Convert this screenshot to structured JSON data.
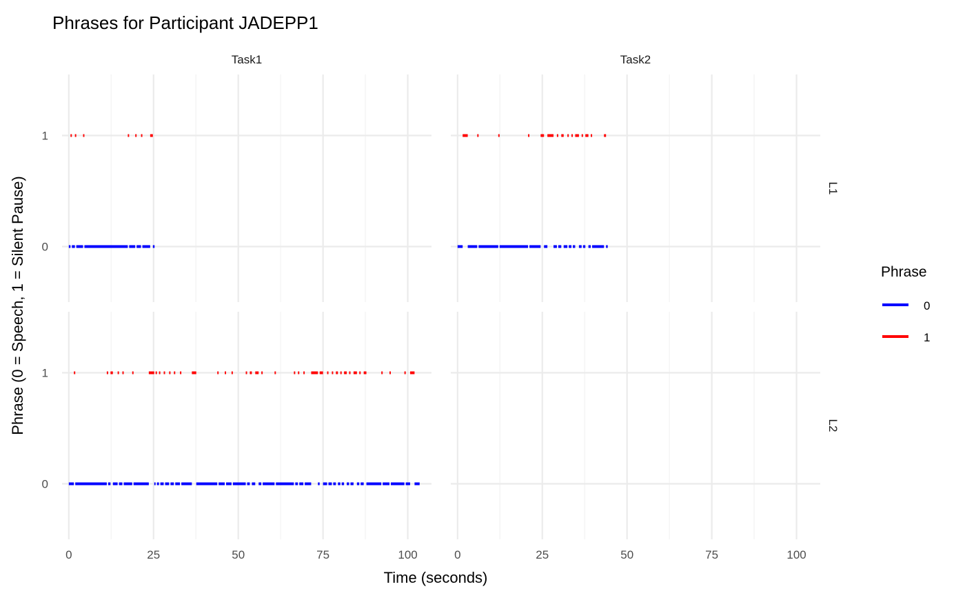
{
  "chart_data": {
    "type": "line",
    "title": "Phrases for Participant JADEPP1",
    "xlabel": "Time (seconds)",
    "ylabel": "Phrase (0 = Speech, 1 = Silent Pause)",
    "xlim": [
      -2,
      107
    ],
    "ylim": [
      -0.5,
      1.55
    ],
    "x_ticks": [
      0,
      25,
      50,
      75,
      100
    ],
    "x_tick_labels": [
      "0",
      "25",
      "50",
      "75",
      "100"
    ],
    "y_ticks": [
      0,
      1
    ],
    "y_tick_labels": [
      "0",
      "1"
    ],
    "x_minor_ticks": [
      12.5,
      37.5,
      62.5,
      87.5
    ],
    "grid": true,
    "facet_cols": [
      "Task1",
      "Task2"
    ],
    "facet_rows": [
      "L1",
      "L2"
    ],
    "legend": {
      "title": "Phrase",
      "position": "right",
      "entries": [
        {
          "label": "0",
          "color": "#0000FF"
        },
        {
          "label": "1",
          "color": "#FF0000"
        }
      ]
    },
    "colors": {
      "0": "#0000FF",
      "1": "#FF0000"
    },
    "panels": [
      {
        "col": "Task1",
        "row": "L1",
        "segments": [
          [
            0.0,
            0.5,
            0
          ],
          [
            0.5,
            0.9,
            1
          ],
          [
            0.9,
            1.8,
            0
          ],
          [
            1.8,
            2.2,
            1
          ],
          [
            2.2,
            4.2,
            0
          ],
          [
            4.2,
            4.6,
            1
          ],
          [
            4.6,
            17.4,
            0
          ],
          [
            17.4,
            17.8,
            1
          ],
          [
            17.8,
            19.6,
            0
          ],
          [
            19.6,
            20.0,
            1
          ],
          [
            20.0,
            21.3,
            0
          ],
          [
            21.3,
            21.7,
            1
          ],
          [
            21.7,
            24.0,
            0
          ],
          [
            24.0,
            24.8,
            1
          ],
          [
            24.8,
            25.3,
            0
          ]
        ]
      },
      {
        "col": "Task2",
        "row": "L1",
        "segments": [
          [
            0.0,
            1.5,
            0
          ],
          [
            1.5,
            3.0,
            1
          ],
          [
            3.0,
            5.8,
            0
          ],
          [
            5.8,
            6.2,
            1
          ],
          [
            6.2,
            12.0,
            0
          ],
          [
            12.0,
            12.4,
            1
          ],
          [
            12.4,
            20.8,
            0
          ],
          [
            20.8,
            21.2,
            1
          ],
          [
            21.2,
            24.5,
            0
          ],
          [
            24.5,
            25.5,
            1
          ],
          [
            25.5,
            26.5,
            0
          ],
          [
            26.5,
            28.3,
            1
          ],
          [
            28.3,
            29.3,
            0
          ],
          [
            29.3,
            29.7,
            1
          ],
          [
            29.7,
            30.6,
            0
          ],
          [
            30.6,
            31.3,
            1
          ],
          [
            31.3,
            32.4,
            0
          ],
          [
            32.4,
            32.8,
            1
          ],
          [
            32.8,
            33.6,
            0
          ],
          [
            33.6,
            34.0,
            1
          ],
          [
            34.0,
            34.7,
            0
          ],
          [
            34.7,
            35.8,
            1
          ],
          [
            35.8,
            36.6,
            0
          ],
          [
            36.6,
            37.0,
            1
          ],
          [
            37.0,
            37.7,
            0
          ],
          [
            37.7,
            38.6,
            1
          ],
          [
            38.6,
            39.3,
            0
          ],
          [
            39.3,
            39.7,
            1
          ],
          [
            39.7,
            43.2,
            0
          ],
          [
            43.2,
            43.8,
            1
          ],
          [
            43.8,
            44.3,
            0
          ]
        ]
      },
      {
        "col": "Task1",
        "row": "L2",
        "segments": [
          [
            0.0,
            1.5,
            0
          ],
          [
            1.5,
            1.9,
            1
          ],
          [
            1.9,
            11.2,
            0
          ],
          [
            11.2,
            11.6,
            1
          ],
          [
            11.6,
            12.3,
            0
          ],
          [
            12.3,
            13.0,
            1
          ],
          [
            13.0,
            14.4,
            0
          ],
          [
            14.4,
            14.8,
            1
          ],
          [
            14.8,
            15.8,
            0
          ],
          [
            15.8,
            16.2,
            1
          ],
          [
            16.2,
            18.7,
            0
          ],
          [
            18.7,
            19.1,
            1
          ],
          [
            19.1,
            23.6,
            0
          ],
          [
            23.6,
            25.2,
            1
          ],
          [
            25.2,
            25.6,
            0
          ],
          [
            25.6,
            26.0,
            1
          ],
          [
            26.0,
            26.6,
            0
          ],
          [
            26.6,
            27.0,
            1
          ],
          [
            27.0,
            28.0,
            0
          ],
          [
            28.0,
            28.4,
            1
          ],
          [
            28.4,
            29.6,
            0
          ],
          [
            29.6,
            30.0,
            1
          ],
          [
            30.0,
            31.0,
            0
          ],
          [
            31.0,
            31.4,
            1
          ],
          [
            31.4,
            32.8,
            0
          ],
          [
            32.8,
            33.2,
            1
          ],
          [
            33.2,
            36.3,
            0
          ],
          [
            36.3,
            37.6,
            1
          ],
          [
            37.6,
            43.8,
            0
          ],
          [
            43.8,
            44.2,
            1
          ],
          [
            44.2,
            46.0,
            0
          ],
          [
            46.0,
            46.4,
            1
          ],
          [
            46.4,
            48.0,
            0
          ],
          [
            48.0,
            48.4,
            1
          ],
          [
            48.4,
            52.2,
            0
          ],
          [
            52.2,
            52.6,
            1
          ],
          [
            52.6,
            53.4,
            0
          ],
          [
            53.4,
            54.0,
            1
          ],
          [
            54.0,
            55.0,
            0
          ],
          [
            55.0,
            56.0,
            1
          ],
          [
            56.0,
            56.8,
            0
          ],
          [
            56.8,
            57.2,
            1
          ],
          [
            57.2,
            60.7,
            0
          ],
          [
            60.7,
            61.1,
            1
          ],
          [
            61.1,
            66.4,
            0
          ],
          [
            66.4,
            66.8,
            1
          ],
          [
            66.8,
            67.6,
            0
          ],
          [
            67.6,
            68.0,
            1
          ],
          [
            68.0,
            69.2,
            0
          ],
          [
            69.2,
            69.6,
            1
          ],
          [
            69.6,
            71.5,
            0
          ],
          [
            71.5,
            73.5,
            1
          ],
          [
            73.5,
            74.0,
            0
          ],
          [
            74.0,
            75.0,
            1
          ],
          [
            75.0,
            76.2,
            0
          ],
          [
            76.2,
            76.6,
            1
          ],
          [
            76.6,
            77.6,
            0
          ],
          [
            77.6,
            78.0,
            1
          ],
          [
            78.0,
            78.8,
            0
          ],
          [
            78.8,
            79.4,
            1
          ],
          [
            79.4,
            80.1,
            0
          ],
          [
            80.1,
            80.5,
            1
          ],
          [
            80.5,
            81.2,
            0
          ],
          [
            81.2,
            82.0,
            1
          ],
          [
            82.0,
            82.7,
            0
          ],
          [
            82.7,
            83.1,
            1
          ],
          [
            83.1,
            84.0,
            0
          ],
          [
            84.0,
            85.0,
            1
          ],
          [
            85.0,
            85.7,
            0
          ],
          [
            85.7,
            86.1,
            1
          ],
          [
            86.1,
            87.0,
            0
          ],
          [
            87.0,
            87.8,
            1
          ],
          [
            87.8,
            92.2,
            0
          ],
          [
            92.2,
            92.6,
            1
          ],
          [
            92.6,
            94.6,
            0
          ],
          [
            94.6,
            95.0,
            1
          ],
          [
            95.0,
            99.0,
            0
          ],
          [
            99.0,
            99.4,
            1
          ],
          [
            99.4,
            100.7,
            0
          ],
          [
            100.7,
            102.0,
            1
          ],
          [
            102.0,
            103.5,
            0
          ]
        ]
      },
      {
        "col": "Task2",
        "row": "L2",
        "segments": []
      }
    ]
  }
}
